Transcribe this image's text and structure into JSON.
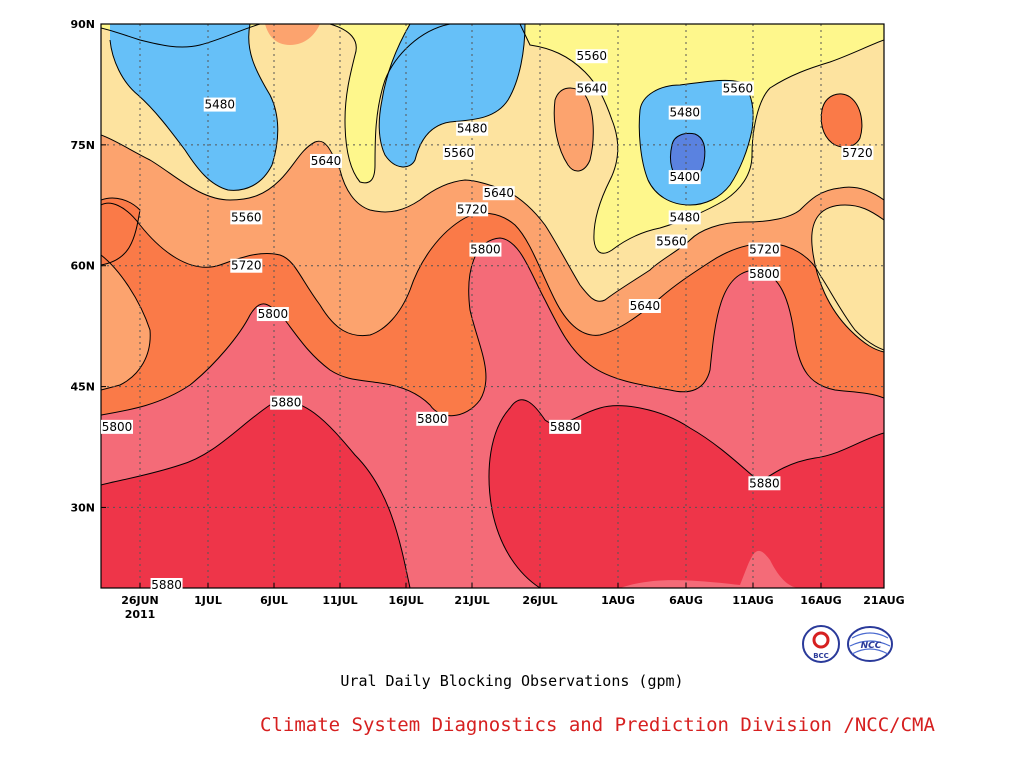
{
  "title": "Ural Daily Blocking Observations (gpm)",
  "credit": "Climate System Diagnostics and Prediction Division /NCC/CMA",
  "logos": [
    {
      "name": "bcc-logo",
      "text": "BCC"
    },
    {
      "name": "ncc-logo",
      "text": "NCC"
    }
  ],
  "chart_data": {
    "type": "contour",
    "xlabel": "",
    "ylabel": "",
    "x_ticks": [
      "26JUN",
      "1JUL",
      "6JUL",
      "11JUL",
      "16JUL",
      "21JUL",
      "26JUL",
      "1AUG",
      "6AUG",
      "11AUG",
      "16AUG",
      "21AUG"
    ],
    "x_year_label": "2011",
    "y_ticks": [
      "30N",
      "45N",
      "60N",
      "75N",
      "90N"
    ],
    "y_range": [
      20,
      90
    ],
    "grid": true,
    "levels": [
      5400,
      5480,
      5560,
      5640,
      5720,
      5800,
      5880
    ],
    "colors": {
      "below_5400": "#5a82e0",
      "5400_5480": "#66c0f8",
      "5480_5560": "#fef78c",
      "5560_5640": "#fde39f",
      "5640_5720": "#fca36e",
      "5720_5800": "#fa7a48",
      "5800_5880": "#f46b78",
      "above_5880": "#ee3549"
    },
    "contour_labels": [
      {
        "value": "5480",
        "date": "2 JUL",
        "lat": 80
      },
      {
        "value": "5560",
        "date": "30 JUL",
        "lat": 86
      },
      {
        "value": "5560",
        "date": "10 AUG",
        "lat": 82
      },
      {
        "value": "5640",
        "date": "30 JUL",
        "lat": 82
      },
      {
        "value": "5480",
        "date": "6 AUG",
        "lat": 79
      },
      {
        "value": "5480",
        "date": "21 JUL",
        "lat": 77
      },
      {
        "value": "5560",
        "date": "20 JUL",
        "lat": 74
      },
      {
        "value": "5640",
        "date": "10 JUL",
        "lat": 73
      },
      {
        "value": "5400",
        "date": "6 AUG",
        "lat": 71
      },
      {
        "value": "5720",
        "date": "19 AUG",
        "lat": 74
      },
      {
        "value": "5640",
        "date": "23 JUL",
        "lat": 69
      },
      {
        "value": "5720",
        "date": "21 JUL",
        "lat": 67
      },
      {
        "value": "5560",
        "date": "4 JUL",
        "lat": 66
      },
      {
        "value": "5480",
        "date": "6 AUG",
        "lat": 66
      },
      {
        "value": "5560",
        "date": "5 AUG",
        "lat": 63
      },
      {
        "value": "5800",
        "date": "22 JUL",
        "lat": 62
      },
      {
        "value": "5720",
        "date": "12 AUG",
        "lat": 62
      },
      {
        "value": "5720",
        "date": "4 JUL",
        "lat": 60
      },
      {
        "value": "5800",
        "date": "12 AUG",
        "lat": 59
      },
      {
        "value": "5640",
        "date": "3 AUG",
        "lat": 55
      },
      {
        "value": "5800",
        "date": "6 JUL",
        "lat": 54
      },
      {
        "value": "5880",
        "date": "7 JUL",
        "lat": 43
      },
      {
        "value": "5800",
        "date": "18 JUL",
        "lat": 41
      },
      {
        "value": "5800",
        "date": "24 JUN",
        "lat": 40
      },
      {
        "value": "5880",
        "date": "28 JUL",
        "lat": 40
      },
      {
        "value": "5880",
        "date": "12 AUG",
        "lat": 33
      },
      {
        "value": "5880",
        "date": "28 JUN",
        "lat": 20
      }
    ]
  }
}
